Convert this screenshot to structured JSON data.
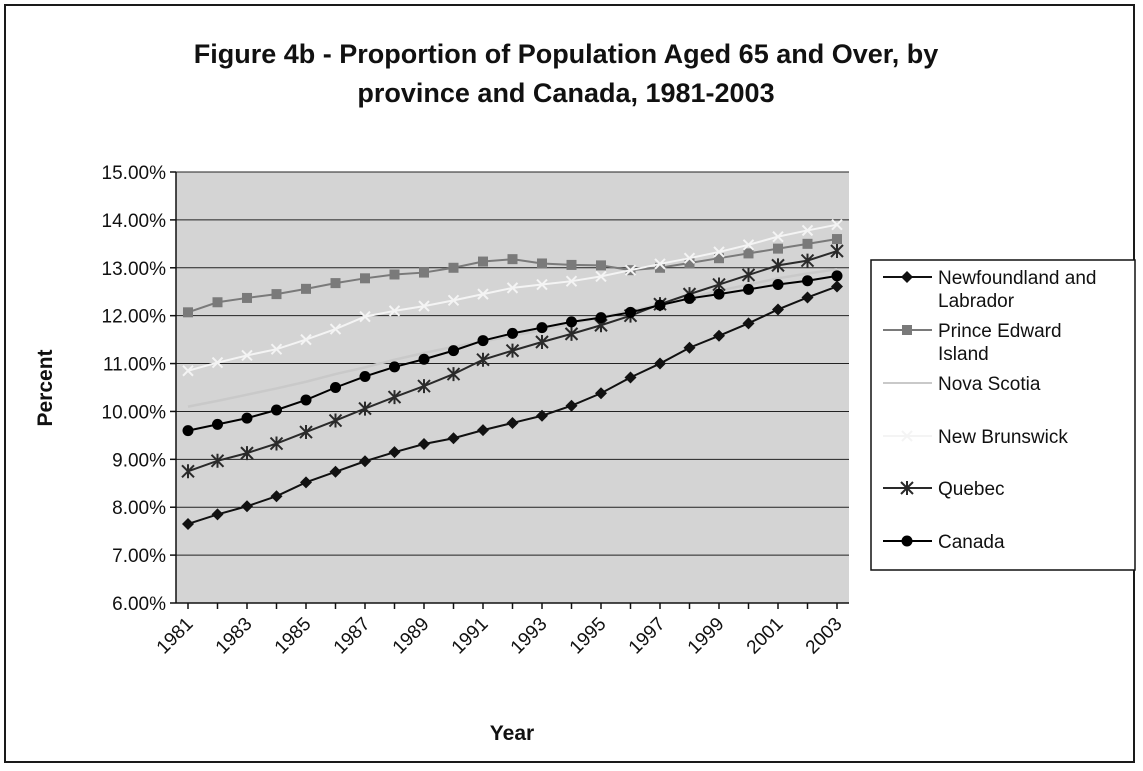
{
  "chart_data": {
    "type": "line",
    "title_lines": [
      "Figure 4b - Proportion of Population Aged 65 and Over, by",
      "province and Canada, 1981-2003"
    ],
    "xlabel": "Year",
    "ylabel": "Percent",
    "ylim": [
      0.06,
      0.15
    ],
    "y_ticks": [
      "6.00%",
      "7.00%",
      "8.00%",
      "9.00%",
      "10.00%",
      "11.00%",
      "12.00%",
      "13.00%",
      "14.00%",
      "15.00%"
    ],
    "x": [
      1981,
      1982,
      1983,
      1984,
      1985,
      1986,
      1987,
      1988,
      1989,
      1990,
      1991,
      1992,
      1993,
      1994,
      1995,
      1996,
      1997,
      1998,
      1999,
      2000,
      2001,
      2002,
      2003
    ],
    "x_tick_labels": [
      "1981",
      "1983",
      "1985",
      "1987",
      "1989",
      "1991",
      "1993",
      "1995",
      "1997",
      "1999",
      "2001",
      "2003"
    ],
    "grid": true,
    "legend_position": "right",
    "plot_background": "#d4d4d4",
    "series": [
      {
        "legend_lines": [
          "Newfoundland and",
          "Labrador"
        ],
        "marker": "diamond",
        "color": "#111111",
        "values": [
          0.0765,
          0.0785,
          0.0802,
          0.0823,
          0.0852,
          0.0874,
          0.0896,
          0.0915,
          0.0932,
          0.0944,
          0.0961,
          0.0976,
          0.0991,
          0.1012,
          0.1038,
          0.1071,
          0.11,
          0.1133,
          0.1158,
          0.1184,
          0.1213,
          0.1238,
          0.1261
        ]
      },
      {
        "legend_lines": [
          "Prince Edward",
          "Island"
        ],
        "marker": "square",
        "color": "#7a7a7a",
        "values": [
          0.1207,
          0.1228,
          0.1237,
          0.1245,
          0.1256,
          0.1268,
          0.1278,
          0.1286,
          0.129,
          0.13,
          0.1313,
          0.1318,
          0.1309,
          0.1306,
          0.1305,
          0.1295,
          0.13,
          0.131,
          0.132,
          0.133,
          0.134,
          0.135,
          0.136
        ]
      },
      {
        "legend_lines": [
          "Nova Scotia"
        ],
        "marker": "none",
        "color": "#c9c9c9",
        "values": [
          0.101,
          0.1022,
          0.1035,
          0.1048,
          0.1062,
          0.1078,
          0.1092,
          0.1108,
          0.1122,
          0.1135,
          0.1146,
          0.1158,
          0.117,
          0.1183,
          0.1197,
          0.121,
          0.1224,
          0.1238,
          0.1252,
          0.1265,
          0.1278,
          0.1288,
          0.1297
        ]
      },
      {
        "legend_lines": [
          "New Brunswick"
        ],
        "marker": "cross",
        "color": "#f4f4f4",
        "values": [
          0.1085,
          0.1102,
          0.1117,
          0.113,
          0.115,
          0.1172,
          0.1198,
          0.121,
          0.122,
          0.1232,
          0.1245,
          0.1258,
          0.1265,
          0.1272,
          0.1282,
          0.1295,
          0.1308,
          0.132,
          0.1333,
          0.1348,
          0.1365,
          0.1378,
          0.139
        ]
      },
      {
        "legend_lines": [
          "Quebec"
        ],
        "marker": "star",
        "color": "#2a2a2a",
        "values": [
          0.0875,
          0.0897,
          0.0913,
          0.0933,
          0.0957,
          0.0981,
          0.1006,
          0.103,
          0.1053,
          0.1078,
          0.1108,
          0.1127,
          0.1145,
          0.1162,
          0.118,
          0.12,
          0.1224,
          0.1245,
          0.1265,
          0.1285,
          0.1305,
          0.1315,
          0.1335
        ]
      },
      {
        "legend_lines": [
          "Canada"
        ],
        "marker": "circle",
        "color": "#000000",
        "values": [
          0.096,
          0.0973,
          0.0986,
          0.1003,
          0.1024,
          0.105,
          0.1073,
          0.1093,
          0.1109,
          0.1127,
          0.1148,
          0.1163,
          0.1175,
          0.1187,
          0.1196,
          0.1207,
          0.1222,
          0.1236,
          0.1245,
          0.1255,
          0.1265,
          0.1273,
          0.1283
        ]
      }
    ]
  }
}
